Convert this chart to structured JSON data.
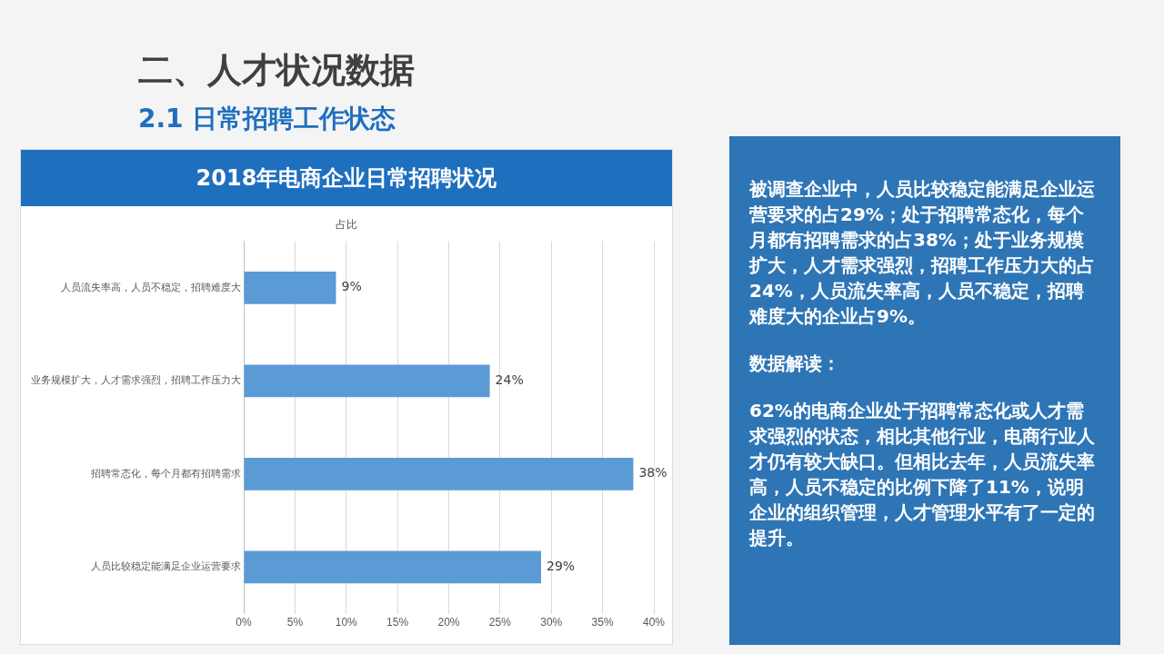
{
  "chart_data": {
    "type": "bar",
    "orientation": "horizontal",
    "title": "2018年电商企业日常招聘状况",
    "xlabel": "占比",
    "categories": [
      "人员流失率高，人员不稳定，招聘难度大",
      "业务规模扩大，人才需求强烈，招聘工作压力大",
      "招聘常态化，每个月都有招聘需求",
      "人员比较稳定能满足企业运营要求"
    ],
    "values": [
      9,
      24,
      38,
      29
    ],
    "value_labels": [
      "9%",
      "24%",
      "38%",
      "29%"
    ],
    "color": "#5b9bd5",
    "xlim": [
      0,
      40
    ],
    "xticks": [
      {
        "value": 0,
        "label": "0%"
      },
      {
        "value": 5,
        "label": "5%"
      },
      {
        "value": 10,
        "label": "10%"
      },
      {
        "value": 15,
        "label": "15%"
      },
      {
        "value": 20,
        "label": "20%"
      },
      {
        "value": 25,
        "label": "25%"
      },
      {
        "value": 30,
        "label": "30%"
      },
      {
        "value": 35,
        "label": "35%"
      },
      {
        "value": 40,
        "label": "40%"
      }
    ],
    "grid": "x",
    "legend": false,
    "annotations": [
      "二、人才状况数据",
      "2.1 日常招聘工作状态",
      "被调查企业中，人员比较稳定能满足企业运营要求的占29%；处于招聘常态化，每个月都有招聘需求的占38%；处于业务规模扩大，人才需求强烈，招聘工作压力大的占24%，人员流失率高，人员不稳定，招聘难度大的企业占9%。",
      "数据解读：",
      "62%的电商企业处于招聘常态化或人才需求强烈的状态，相比其他行业，电商行业人才仍有较大缺口。但相比去年，人员流失率高，人员不稳定的比例下降了11%，说明企业的组织管理，人才管理水平有了一定的提升。"
    ]
  }
}
